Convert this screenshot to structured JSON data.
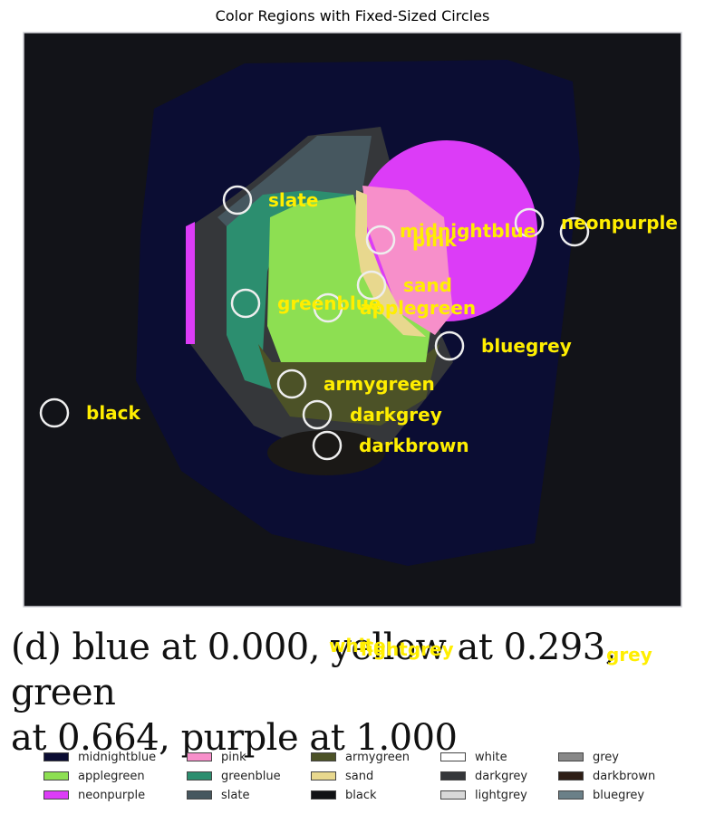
{
  "title": "Color Regions with Fixed-Sized Circles",
  "caption_line1": "(d) blue at 0.000, yellow at 0.293, green",
  "caption_line2": "at 0.664, purple at 1.000",
  "circle_labels": [
    {
      "id": "slate",
      "text": "slate"
    },
    {
      "id": "midnightblue",
      "text": "midnightblue"
    },
    {
      "id": "pink",
      "text": "pink"
    },
    {
      "id": "neonpurple",
      "text": "neonpurple"
    },
    {
      "id": "sand",
      "text": "sand"
    },
    {
      "id": "greenblue",
      "text": "greenblue"
    },
    {
      "id": "applegreen",
      "text": "applegreen"
    },
    {
      "id": "bluegrey",
      "text": "bluegrey"
    },
    {
      "id": "armygreen",
      "text": "armygreen"
    },
    {
      "id": "black",
      "text": "black"
    },
    {
      "id": "darkgrey",
      "text": "darkgrey"
    },
    {
      "id": "darkbrown",
      "text": "darkbrown"
    },
    {
      "id": "white",
      "text": "white"
    },
    {
      "id": "lightgrey",
      "text": "lightgrey"
    },
    {
      "id": "grey",
      "text": "grey"
    }
  ],
  "legend": [
    {
      "label": "midnightblue",
      "color": "#0b0d33"
    },
    {
      "label": "applegreen",
      "color": "#8ddf52"
    },
    {
      "label": "neonpurple",
      "color": "#dc3cf7"
    },
    {
      "label": "pink",
      "color": "#f78fca"
    },
    {
      "label": "greenblue",
      "color": "#2c8e6f"
    },
    {
      "label": "slate",
      "color": "#46575f"
    },
    {
      "label": "armygreen",
      "color": "#4c5227"
    },
    {
      "label": "sand",
      "color": "#e8d88e"
    },
    {
      "label": "black",
      "color": "#111215"
    },
    {
      "label": "white",
      "color": "#ffffff"
    },
    {
      "label": "darkgrey",
      "color": "#35373a"
    },
    {
      "label": "lightgrey",
      "color": "#d8d8d8"
    },
    {
      "label": "grey",
      "color": "#888888"
    },
    {
      "label": "darkbrown",
      "color": "#2e1e16"
    },
    {
      "label": "bluegrey",
      "color": "#6b8088"
    }
  ]
}
